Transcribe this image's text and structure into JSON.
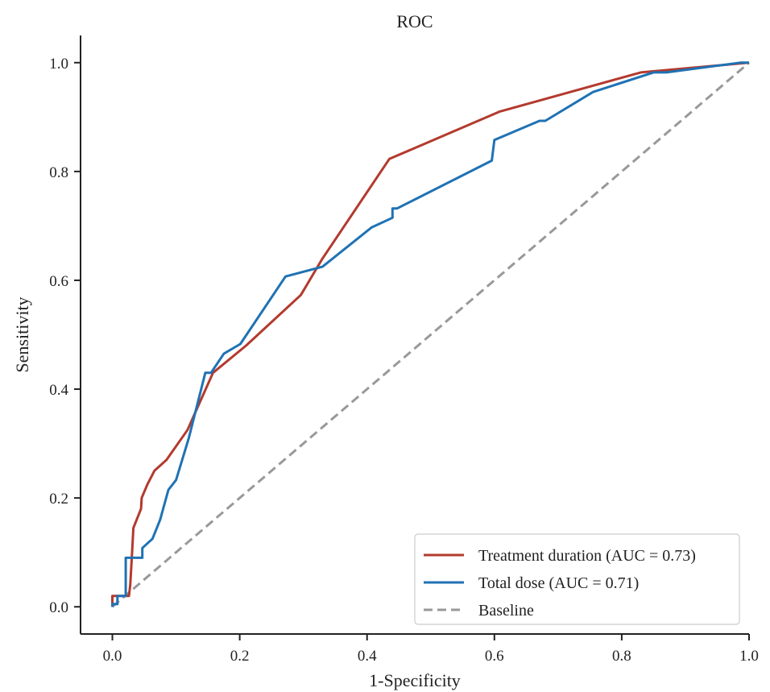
{
  "chart_data": {
    "type": "line",
    "title": "ROC",
    "xlabel": "1-Specificity",
    "ylabel": "Sensitivity",
    "xlim": [
      -0.05,
      1.0
    ],
    "ylim": [
      -0.05,
      1.05
    ],
    "xticks": [
      0.0,
      0.2,
      0.4,
      0.6,
      0.8,
      1.0
    ],
    "yticks": [
      0.0,
      0.2,
      0.4,
      0.6,
      0.8,
      1.0
    ],
    "xtick_labels": [
      "0.0",
      "0.2",
      "0.4",
      "0.6",
      "0.8",
      "1.0"
    ],
    "ytick_labels": [
      "0.0",
      "0.2",
      "0.4",
      "0.6",
      "0.8",
      "1.0"
    ],
    "grid": false,
    "legend_position": "bottom-right",
    "series": [
      {
        "name": "Treatment duration (AUC = 0.73)",
        "color": "#b33a2e",
        "style": "solid",
        "points": [
          [
            0.0,
            0.0
          ],
          [
            0.0,
            0.02
          ],
          [
            0.015,
            0.02
          ],
          [
            0.026,
            0.02
          ],
          [
            0.028,
            0.04
          ],
          [
            0.031,
            0.1
          ],
          [
            0.033,
            0.145
          ],
          [
            0.045,
            0.18
          ],
          [
            0.046,
            0.2
          ],
          [
            0.055,
            0.225
          ],
          [
            0.066,
            0.25
          ],
          [
            0.085,
            0.27
          ],
          [
            0.118,
            0.325
          ],
          [
            0.158,
            0.43
          ],
          [
            0.21,
            0.48
          ],
          [
            0.296,
            0.573
          ],
          [
            0.33,
            0.64
          ],
          [
            0.435,
            0.823
          ],
          [
            0.608,
            0.91
          ],
          [
            0.83,
            0.982
          ],
          [
            1.0,
            1.0
          ]
        ]
      },
      {
        "name": "Total dose (AUC = 0.71)",
        "color": "#1f72b4",
        "style": "solid",
        "points": [
          [
            0.0,
            0.0
          ],
          [
            0.0,
            0.005
          ],
          [
            0.008,
            0.005
          ],
          [
            0.008,
            0.02
          ],
          [
            0.018,
            0.02
          ],
          [
            0.021,
            0.02
          ],
          [
            0.021,
            0.09
          ],
          [
            0.047,
            0.09
          ],
          [
            0.047,
            0.108
          ],
          [
            0.063,
            0.125
          ],
          [
            0.075,
            0.16
          ],
          [
            0.088,
            0.215
          ],
          [
            0.1,
            0.233
          ],
          [
            0.12,
            0.31
          ],
          [
            0.146,
            0.43
          ],
          [
            0.155,
            0.43
          ],
          [
            0.175,
            0.465
          ],
          [
            0.201,
            0.483
          ],
          [
            0.272,
            0.607
          ],
          [
            0.33,
            0.625
          ],
          [
            0.407,
            0.697
          ],
          [
            0.44,
            0.715
          ],
          [
            0.44,
            0.732
          ],
          [
            0.447,
            0.732
          ],
          [
            0.596,
            0.82
          ],
          [
            0.6,
            0.858
          ],
          [
            0.671,
            0.893
          ],
          [
            0.68,
            0.893
          ],
          [
            0.755,
            0.946
          ],
          [
            0.85,
            0.982
          ],
          [
            0.87,
            0.982
          ],
          [
            0.986,
            1.0
          ],
          [
            1.0,
            1.0
          ]
        ]
      },
      {
        "name": "Baseline",
        "color": "#999999",
        "style": "dashed",
        "points": [
          [
            0.0,
            0.0
          ],
          [
            1.0,
            1.0
          ]
        ]
      }
    ]
  }
}
